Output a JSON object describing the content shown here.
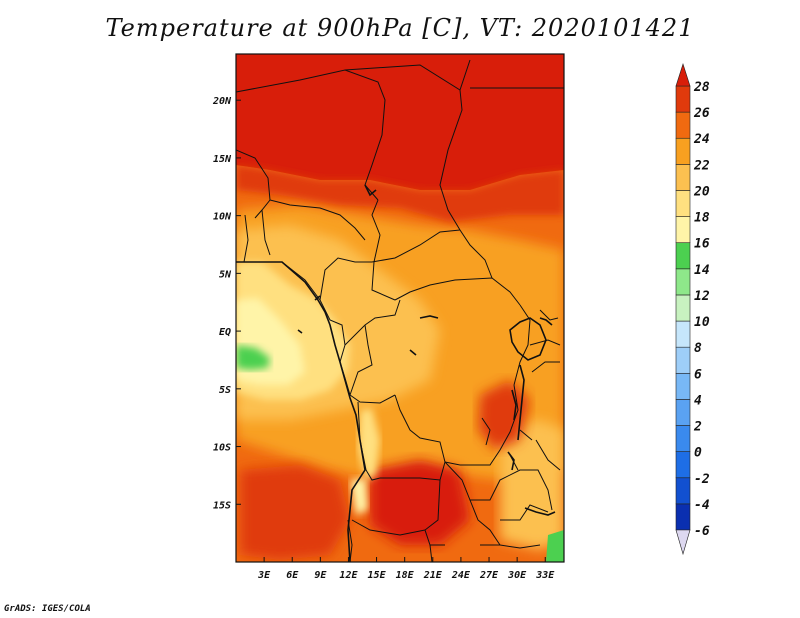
{
  "title": "Temperature at 900hPa [C], VT: 2020101421",
  "credit": "GrADS: IGES/COLA",
  "map": {
    "region": "Central Africa",
    "lon_range": [
      0,
      35
    ],
    "lat_range": [
      -20,
      24
    ],
    "x_ticks": [
      {
        "lon": 3,
        "label": "3E"
      },
      {
        "lon": 6,
        "label": "6E"
      },
      {
        "lon": 9,
        "label": "9E"
      },
      {
        "lon": 12,
        "label": "12E"
      },
      {
        "lon": 15,
        "label": "15E"
      },
      {
        "lon": 18,
        "label": "18E"
      },
      {
        "lon": 21,
        "label": "21E"
      },
      {
        "lon": 24,
        "label": "24E"
      },
      {
        "lon": 27,
        "label": "27E"
      },
      {
        "lon": 30,
        "label": "30E"
      },
      {
        "lon": 33,
        "label": "33E"
      }
    ],
    "y_ticks": [
      {
        "lat": 20,
        "label": "20N"
      },
      {
        "lat": 15,
        "label": "15N"
      },
      {
        "lat": 10,
        "label": "10N"
      },
      {
        "lat": 5,
        "label": "5N"
      },
      {
        "lat": 0,
        "label": "EQ"
      },
      {
        "lat": -5,
        "label": "5S"
      },
      {
        "lat": -10,
        "label": "10S"
      },
      {
        "lat": -15,
        "label": "15S"
      }
    ]
  },
  "colorbar": {
    "levels": [
      {
        "value": -6,
        "label": "-6",
        "color": "#2a1a8a"
      },
      {
        "value": -4,
        "label": "-4",
        "color": "#0a2fb0"
      },
      {
        "value": -2,
        "label": "-2",
        "color": "#1250d0"
      },
      {
        "value": 0,
        "label": "0",
        "color": "#1e6ee6"
      },
      {
        "value": 2,
        "label": "2",
        "color": "#3a8aee"
      },
      {
        "value": 4,
        "label": "4",
        "color": "#5aa2f2"
      },
      {
        "value": 6,
        "label": "6",
        "color": "#78b8f6"
      },
      {
        "value": 8,
        "label": "8",
        "color": "#9ecef8"
      },
      {
        "value": 10,
        "label": "10",
        "color": "#c6e6fb"
      },
      {
        "value": 12,
        "label": "12",
        "color": "#c8f2c0"
      },
      {
        "value": 14,
        "label": "14",
        "color": "#8ee88a"
      },
      {
        "value": 16,
        "label": "16",
        "color": "#4cd050"
      },
      {
        "value": 18,
        "label": "18",
        "color": "#fff4a8"
      },
      {
        "value": 20,
        "label": "20",
        "color": "#ffe080"
      },
      {
        "value": 22,
        "label": "22",
        "color": "#fcc050"
      },
      {
        "value": 24,
        "label": "24",
        "color": "#f8a020"
      },
      {
        "value": 26,
        "label": "26",
        "color": "#f06a10"
      },
      {
        "value": 28,
        "label": "28",
        "color": "#e03a0c"
      }
    ],
    "top_color": "#d81e0a",
    "bottom_color": "#ddd8f0"
  }
}
